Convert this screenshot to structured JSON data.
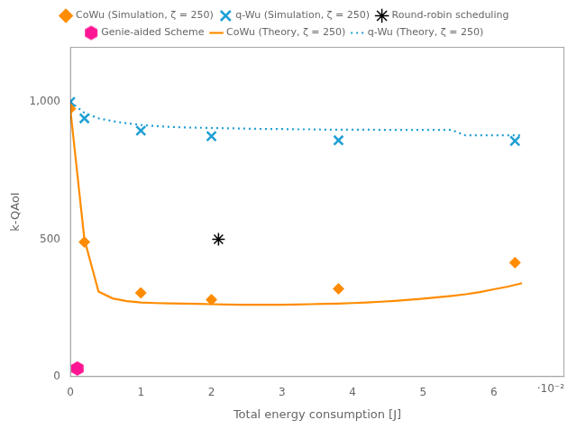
{
  "chart_data": {
    "type": "scatter",
    "x_label": "Total energy consumption [J]",
    "y_label": "k-QAoI",
    "annotations": [
      "·10⁻²"
    ],
    "xlim": [
      0.0,
      0.07
    ],
    "ylim": [
      0,
      1200
    ],
    "xticks": [
      0,
      {
        "value": 0.01,
        "label": "1"
      },
      {
        "value": 0.02,
        "label": "2"
      },
      {
        "value": 0.03,
        "label": "3"
      },
      {
        "value": 0.04,
        "label": "4"
      },
      {
        "value": 0.05,
        "label": "5"
      },
      {
        "value": 0.06,
        "label": "6"
      }
    ],
    "yticks": [
      0,
      500,
      {
        "value": 1000,
        "label": "1,000"
      }
    ],
    "grid": false,
    "legend": "top",
    "series": [
      {
        "name": "CoWu (Theory, ζ = 250)",
        "type": "line",
        "line_style": "solid",
        "color": "#FF8C00",
        "x": [
          0.0,
          0.002,
          0.004,
          0.006,
          0.008,
          0.01,
          0.012,
          0.014,
          0.016,
          0.018,
          0.02,
          0.022,
          0.024,
          0.026,
          0.028,
          0.03,
          0.032,
          0.034,
          0.036,
          0.038,
          0.04,
          0.042,
          0.044,
          0.046,
          0.048,
          0.05,
          0.052,
          0.054,
          0.056,
          0.058,
          0.06,
          0.062,
          0.064
        ],
        "values": [
          975,
          500,
          310,
          285,
          275,
          270,
          268,
          267,
          266,
          265,
          264,
          263,
          262,
          262,
          262,
          262,
          263,
          264,
          265,
          266,
          268,
          270,
          273,
          276,
          280,
          284,
          289,
          294,
          300,
          308,
          318,
          328,
          340
        ]
      },
      {
        "name": "CoWu (Simulation, ζ = 250)",
        "type": "scatter",
        "marker": "diamond",
        "color": "#FF8C00",
        "x": [
          0.0,
          0.002,
          0.01,
          0.02,
          0.038,
          0.063
        ],
        "values": [
          975,
          490,
          305,
          280,
          320,
          415
        ]
      },
      {
        "name": "q-Wu (Theory, ζ = 250)",
        "type": "line",
        "line_style": "dotted",
        "color": "#1E9FD4",
        "x": [
          0.0,
          0.002,
          0.004,
          0.006,
          0.008,
          0.01,
          0.012,
          0.014,
          0.016,
          0.018,
          0.02,
          0.022,
          0.024,
          0.026,
          0.028,
          0.03,
          0.032,
          0.034,
          0.036,
          0.038,
          0.04,
          0.042,
          0.044,
          0.046,
          0.048,
          0.05,
          0.052,
          0.054,
          0.056,
          0.058,
          0.06,
          0.062,
          0.064
        ],
        "values": [
          1000,
          960,
          940,
          930,
          922,
          916,
          912,
          909,
          907,
          906,
          905,
          904,
          903,
          902,
          901,
          901,
          900,
          900,
          899,
          899,
          899,
          899,
          898,
          898,
          898,
          898,
          898,
          898,
          878,
          878,
          878,
          878,
          878
        ]
      },
      {
        "name": "q-Wu (Simulation, ζ = 250)",
        "type": "scatter",
        "marker": "x",
        "color": "#1E9FD4",
        "x": [
          0.0,
          0.002,
          0.01,
          0.02,
          0.038,
          0.063
        ],
        "values": [
          1000,
          940,
          895,
          875,
          860,
          858
        ]
      },
      {
        "name": "Round-robin scheduling",
        "type": "scatter",
        "marker": "asterisk",
        "color": "black",
        "x": [
          0.021
        ],
        "values": [
          500
        ]
      },
      {
        "name": "Genie-aided Scheme",
        "type": "scatter",
        "marker": "hexagon",
        "color": "#FF1493",
        "x": [
          0.001
        ],
        "values": [
          30
        ]
      }
    ]
  }
}
